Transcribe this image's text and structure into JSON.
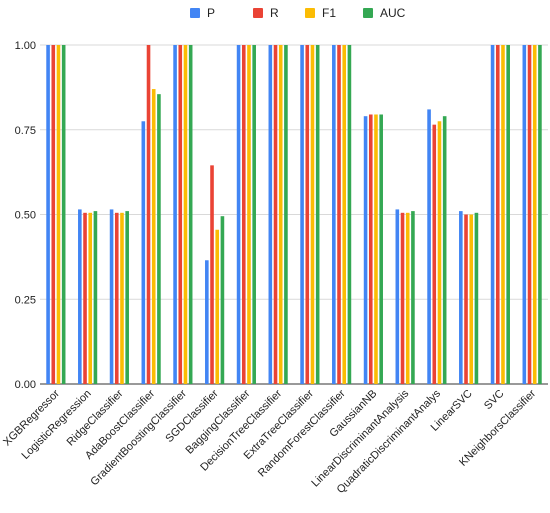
{
  "chart_data": {
    "type": "bar",
    "title": "",
    "xlabel": "",
    "ylabel": "",
    "ylim": [
      0,
      1
    ],
    "yticks": [
      "0.00",
      "0.25",
      "0.50",
      "0.75",
      "1.00"
    ],
    "legend_position": "top",
    "grid": true,
    "categories": [
      "XGBRegressor",
      "LogisticRegression",
      "RidgeClassifier",
      "AdaBoostClassifier",
      "GradientBoostingClassifier",
      "SGDClassifier",
      "BaggingClassifier",
      "DecisionTreeClassifier",
      "ExtraTreeClassifier",
      "RandomForestClassifier",
      "GaussianNB",
      "LinearDiscriminantAnalysis",
      "QuadraticDiscriminantAnalys",
      "LinearSVC",
      "SVC",
      "KNeighborsClassifier"
    ],
    "series": [
      {
        "name": "P",
        "color": "#4285f4",
        "values": [
          1.0,
          0.515,
          0.515,
          0.775,
          1.0,
          0.365,
          1.0,
          1.0,
          1.0,
          1.0,
          0.79,
          0.515,
          0.81,
          0.51,
          1.0,
          1.0
        ]
      },
      {
        "name": "R",
        "color": "#ea4335",
        "values": [
          1.0,
          0.505,
          0.505,
          1.0,
          1.0,
          0.645,
          1.0,
          1.0,
          1.0,
          1.0,
          0.795,
          0.505,
          0.765,
          0.5,
          1.0,
          1.0
        ]
      },
      {
        "name": "F1",
        "color": "#fbbc04",
        "values": [
          1.0,
          0.505,
          0.505,
          0.87,
          1.0,
          0.455,
          1.0,
          1.0,
          1.0,
          1.0,
          0.795,
          0.505,
          0.775,
          0.5,
          1.0,
          1.0
        ]
      },
      {
        "name": "AUC",
        "color": "#34a853",
        "values": [
          1.0,
          0.51,
          0.51,
          0.855,
          1.0,
          0.495,
          1.0,
          1.0,
          1.0,
          1.0,
          0.795,
          0.51,
          0.79,
          0.505,
          1.0,
          1.0
        ]
      }
    ]
  }
}
